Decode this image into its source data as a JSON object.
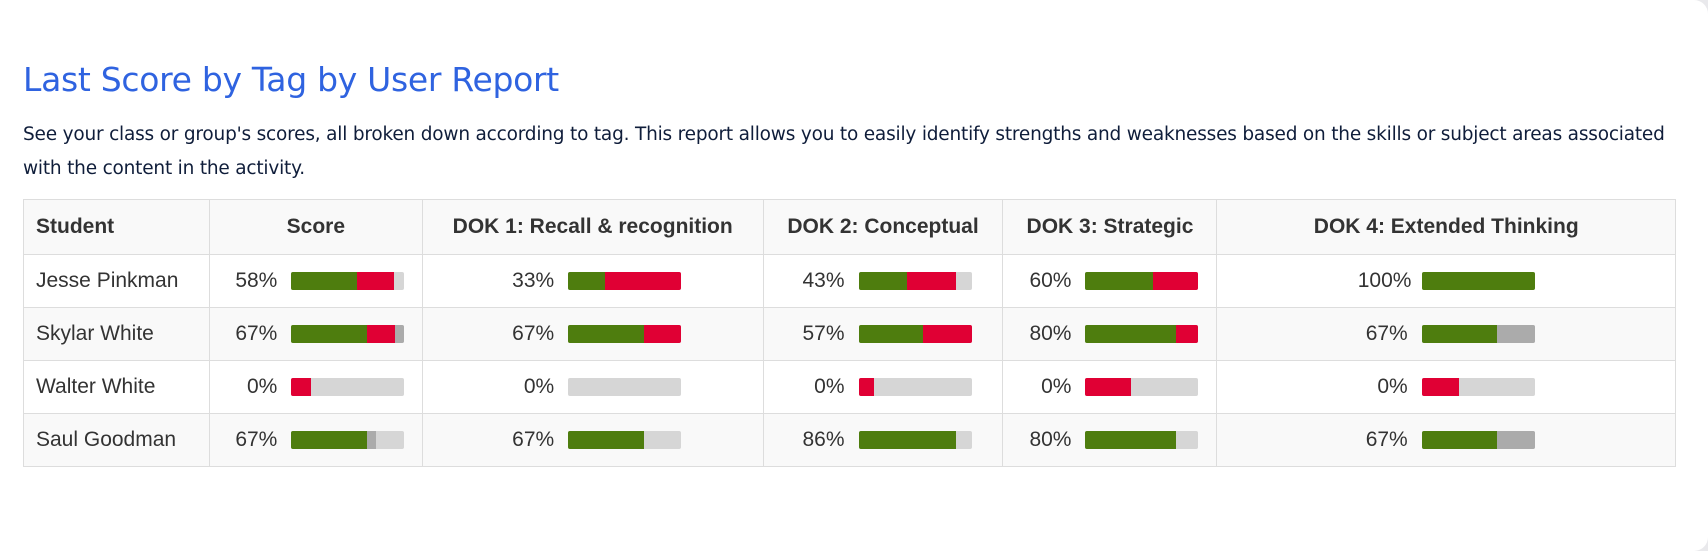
{
  "report": {
    "title": "Last Score by Tag by User Report",
    "description": "See your class or group's scores, all broken down according to tag. This report allows you to easily identify strengths and weaknesses based on the skills or subject areas associated with the content in the activity."
  },
  "colors": {
    "correct": "#4e7d0e",
    "incorrect": "#e00034",
    "partial": "#ababab",
    "unattempted": "#d6d6d6"
  },
  "table": {
    "headers": [
      "Student",
      "Score",
      "DOK 1: Recall & recognition",
      "DOK 2: Conceptual",
      "DOK 3: Strategic",
      "DOK 4: Extended Thinking"
    ],
    "rows": [
      {
        "student": "Jesse Pinkman",
        "cells": [
          {
            "label": "58%",
            "correct": 0.58,
            "incorrect": 0.33,
            "partial": 0.0
          },
          {
            "label": "33%",
            "correct": 0.33,
            "incorrect": 0.67,
            "partial": 0.0
          },
          {
            "label": "43%",
            "correct": 0.43,
            "incorrect": 0.43,
            "partial": 0.0
          },
          {
            "label": "60%",
            "correct": 0.6,
            "incorrect": 0.4,
            "partial": 0.0
          },
          {
            "label": "100%",
            "correct": 1.0,
            "incorrect": 0.0,
            "partial": 0.0
          }
        ]
      },
      {
        "student": "Skylar White",
        "cells": [
          {
            "label": "67%",
            "correct": 0.67,
            "incorrect": 0.25,
            "partial": 0.08
          },
          {
            "label": "67%",
            "correct": 0.67,
            "incorrect": 0.33,
            "partial": 0.0
          },
          {
            "label": "57%",
            "correct": 0.57,
            "incorrect": 0.43,
            "partial": 0.0
          },
          {
            "label": "80%",
            "correct": 0.8,
            "incorrect": 0.2,
            "partial": 0.0
          },
          {
            "label": "67%",
            "correct": 0.67,
            "incorrect": 0.0,
            "partial": 0.33
          }
        ]
      },
      {
        "student": "Walter White",
        "cells": [
          {
            "label": "0%",
            "correct": 0.0,
            "incorrect": 0.17,
            "partial": 0.0
          },
          {
            "label": "0%",
            "correct": 0.0,
            "incorrect": 0.0,
            "partial": 0.0
          },
          {
            "label": "0%",
            "correct": 0.0,
            "incorrect": 0.14,
            "partial": 0.0
          },
          {
            "label": "0%",
            "correct": 0.0,
            "incorrect": 0.4,
            "partial": 0.0
          },
          {
            "label": "0%",
            "correct": 0.0,
            "incorrect": 0.33,
            "partial": 0.0
          }
        ]
      },
      {
        "student": "Saul Goodman",
        "cells": [
          {
            "label": "67%",
            "correct": 0.67,
            "incorrect": 0.0,
            "partial": 0.08
          },
          {
            "label": "67%",
            "correct": 0.67,
            "incorrect": 0.0,
            "partial": 0.0
          },
          {
            "label": "86%",
            "correct": 0.86,
            "incorrect": 0.0,
            "partial": 0.0
          },
          {
            "label": "80%",
            "correct": 0.8,
            "incorrect": 0.0,
            "partial": 0.0
          },
          {
            "label": "67%",
            "correct": 0.67,
            "incorrect": 0.0,
            "partial": 0.33
          }
        ]
      }
    ]
  }
}
